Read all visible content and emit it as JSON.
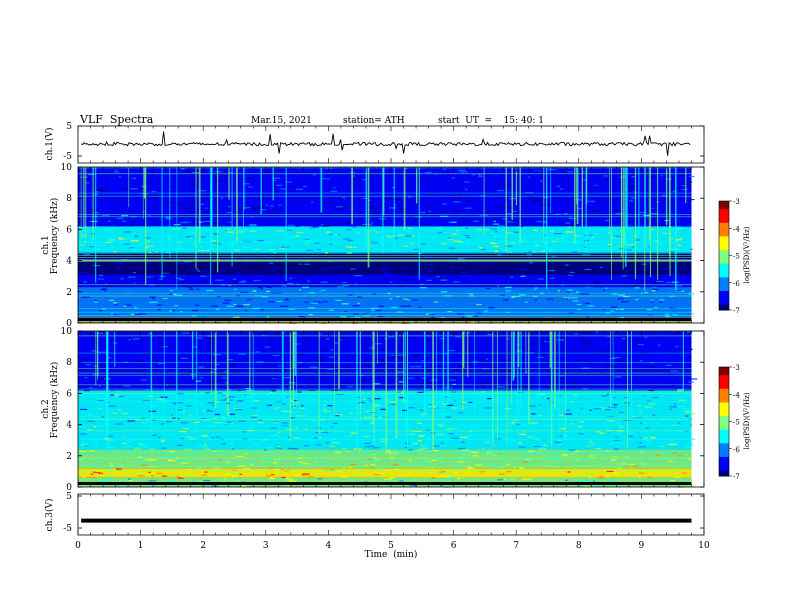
{
  "header": {
    "title": "VLF  Spectra",
    "date": "Mar.15, 2021",
    "station": "station= ATH",
    "start": "start  UT  =    15: 40: 1"
  },
  "chart_data": [
    {
      "type": "line",
      "panel": "ch1-waveform",
      "ylabel": "ch.1(V)",
      "ylim": [
        -5,
        5
      ],
      "y_ticks": [
        "5",
        "-5"
      ],
      "xlim": [
        0,
        10
      ],
      "note_values": "trace stays near 0 V; spikes are small"
    },
    {
      "type": "heatmap",
      "panel": "ch1-spectrogram",
      "ylabel": "ch.1\nFrequency  (kHz)",
      "ylim": [
        0,
        10
      ],
      "y_ticks": [
        "0",
        "2",
        "4",
        "6",
        "8",
        "10"
      ],
      "xlim": [
        0,
        9.8
      ],
      "colorbar": {
        "label": "log(PSD)(V²/Hz)",
        "range": [
          -7,
          -3
        ],
        "ticks": [
          "-3",
          "-4",
          "-5",
          "-6",
          "-7"
        ]
      },
      "bands_khz": [
        {
          "from": 0.0,
          "to": 0.35,
          "level": -4.2
        },
        {
          "from": 0.35,
          "to": 2.3,
          "level": -5.9
        },
        {
          "from": 2.3,
          "to": 3.1,
          "level": -6.5
        },
        {
          "from": 3.1,
          "to": 4.5,
          "level": -6.8
        },
        {
          "from": 4.5,
          "to": 6.2,
          "level": -5.4
        },
        {
          "from": 6.2,
          "to": 7.0,
          "level": -6.3
        },
        {
          "from": 7.0,
          "to": 10.0,
          "level": -6.6
        }
      ]
    },
    {
      "type": "heatmap",
      "panel": "ch2-spectrogram",
      "ylabel": "ch.2\nFrequency  (kHz)",
      "ylim": [
        0,
        10
      ],
      "y_ticks": [
        "0",
        "2",
        "4",
        "6",
        "8",
        "10"
      ],
      "xlim": [
        0,
        9.8
      ],
      "colorbar": {
        "label": "log(PSD)(V²/Hz)",
        "range": [
          -7,
          -3
        ],
        "ticks": [
          "-3",
          "-4",
          "-5",
          "-6",
          "-7"
        ]
      },
      "bands_khz": [
        {
          "from": 0.0,
          "to": 0.6,
          "level": -5.2
        },
        {
          "from": 0.6,
          "to": 1.2,
          "level": -4.3
        },
        {
          "from": 1.2,
          "to": 2.4,
          "level": -4.8
        },
        {
          "from": 2.4,
          "to": 4.2,
          "level": -5.4
        },
        {
          "from": 4.2,
          "to": 6.2,
          "level": -5.6
        },
        {
          "from": 6.2,
          "to": 7.2,
          "level": -6.5
        },
        {
          "from": 7.2,
          "to": 10.0,
          "level": -6.7
        }
      ]
    },
    {
      "type": "line",
      "panel": "ch3-waveform",
      "ylabel": "ch.3(V)",
      "ylim": [
        -5,
        5
      ],
      "y_ticks": [
        "5",
        "-5"
      ],
      "xlim": [
        0,
        10
      ],
      "note_values": "flat trace at about -1.5 V"
    }
  ],
  "x_axis": {
    "label": "Time  (min)",
    "ticks": [
      "0",
      "1",
      "2",
      "3",
      "4",
      "5",
      "6",
      "7",
      "8",
      "9",
      "10"
    ]
  },
  "colors": {
    "jet": [
      "#00007f",
      "#0000ff",
      "#0080ff",
      "#00ffff",
      "#80ff80",
      "#ffff00",
      "#ff8000",
      "#ff0000",
      "#7f0000"
    ]
  }
}
